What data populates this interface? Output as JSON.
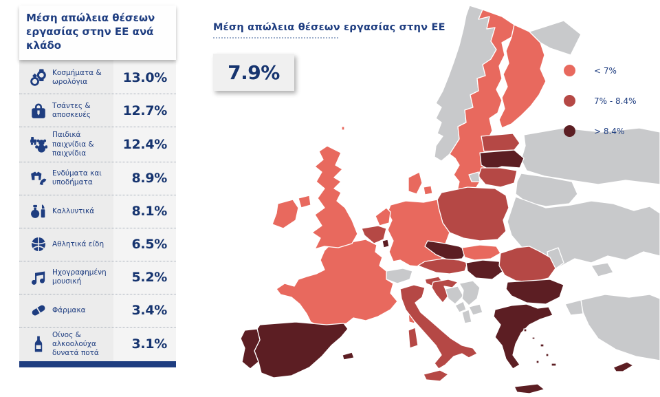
{
  "colors": {
    "navy_text": "#1E3D80",
    "panel_gray": "#ECECEC",
    "band_light": "#E8695E",
    "band_mid": "#B54845",
    "band_dark": "#5C1E23",
    "non_eu_gray": "#C8C9CB",
    "sea_white": "#FFFFFF"
  },
  "sidebar": {
    "title": "Μέση απώλεια θέσεων εργασίας στην ΕΕ ανά κλάδο",
    "items": [
      {
        "icon": "jewelry-watches-icon",
        "label": "Κοσμήματα & ωρολόγια",
        "value": "13.0%"
      },
      {
        "icon": "bags-luggage-icon",
        "label": "Τσάντες & αποσκευές",
        "value": "12.7%"
      },
      {
        "icon": "toys-icon",
        "label": "Παιδικά παιχνίδια & παιχνίδια",
        "value": "12.4%"
      },
      {
        "icon": "clothing-footwear-icon",
        "label": "Ενδύματα και υποδήματα",
        "value": "8.9%"
      },
      {
        "icon": "cosmetics-icon",
        "label": "Καλλυντικά",
        "value": "8.1%"
      },
      {
        "icon": "sports-goods-icon",
        "label": "Αθλητικά είδη",
        "value": "6.5%"
      },
      {
        "icon": "recorded-music-icon",
        "label": "Ηχογραφημένη μουσική",
        "value": "5.2%"
      },
      {
        "icon": "pharmaceuticals-icon",
        "label": "Φάρμακα",
        "value": "3.4%"
      },
      {
        "icon": "wine-spirits-icon",
        "label": "Οίνος & αλκοολούχα δυνατά ποτά",
        "value": "3.1%"
      }
    ]
  },
  "main": {
    "title": "Μέση απώλεια θέσεων εργασίας στην ΕΕ",
    "average_value": "7.9%"
  },
  "legend": {
    "items": [
      {
        "label": "< 7%",
        "color": "#E8695E"
      },
      {
        "label": "7% - 8.4%",
        "color": "#B54845"
      },
      {
        "label": "> 8.4%",
        "color": "#5C1E23"
      }
    ]
  },
  "chart_data": [
    {
      "type": "bar",
      "title": "Μέση απώλεια θέσεων εργασίας στην ΕΕ ανά κλάδο",
      "categories": [
        "Κοσμήματα & ωρολόγια",
        "Τσάντες & αποσκευές",
        "Παιδικά παιχνίδια & παιχνίδια",
        "Ενδύματα και υποδήματα",
        "Καλλυντικά",
        "Αθλητικά είδη",
        "Ηχογραφημένη μουσική",
        "Φάρμακα",
        "Οίνος & αλκοολούχα δυνατά ποτά"
      ],
      "values": [
        13.0,
        12.7,
        12.4,
        8.9,
        8.1,
        6.5,
        5.2,
        3.4,
        3.1
      ],
      "unit": "%"
    },
    {
      "type": "heatmap",
      "subtype": "choropleth-map-of-europe",
      "title": "Μέση απώλεια θέσεων εργασίας στην ΕΕ",
      "eu_average_pct": 7.9,
      "bands": [
        {
          "key": "lt7",
          "label": "< 7%",
          "color": "#E8695E",
          "countries": [
            "Ireland",
            "United Kingdom",
            "France",
            "Germany",
            "Netherlands",
            "Denmark",
            "Sweden",
            "Finland",
            "Slovakia"
          ]
        },
        {
          "key": "mid",
          "label": "7% - 8.4%",
          "color": "#B54845",
          "countries": [
            "Belgium",
            "Poland",
            "Austria",
            "Italy",
            "Romania",
            "Estonia",
            "Lithuania",
            "Slovenia",
            "Croatia"
          ]
        },
        {
          "key": "gt84",
          "label": "> 8.4%",
          "color": "#5C1E23",
          "countries": [
            "Spain",
            "Portugal",
            "Luxembourg",
            "Czech Republic",
            "Hungary",
            "Latvia",
            "Bulgaria",
            "Greece",
            "Cyprus"
          ]
        }
      ],
      "non_eu_countries": {
        "color": "#C8C9CB",
        "countries": [
          "Norway",
          "Switzerland",
          "Russia",
          "Belarus",
          "Ukraine",
          "Moldova",
          "Turkey",
          "Serbia",
          "Bosnia and Herzegovina",
          "Montenegro",
          "Albania",
          "North Macedonia",
          "Kaliningrad"
        ]
      }
    }
  ]
}
